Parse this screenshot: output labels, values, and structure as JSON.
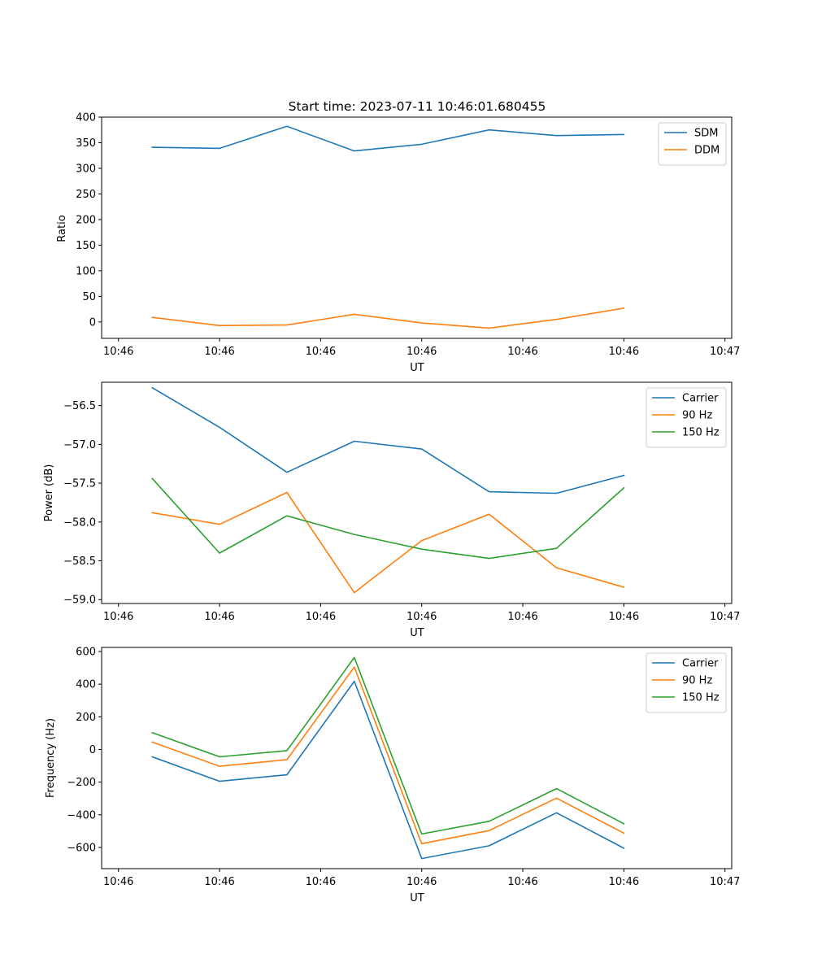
{
  "chart_data": [
    {
      "type": "line",
      "title": "Start time: 2023-07-11 10:46:01.680455",
      "xlabel": "UT",
      "ylabel": "Ratio",
      "ylim": [
        -32,
        400
      ],
      "yticks": [
        0,
        50,
        100,
        150,
        200,
        250,
        300,
        350,
        400
      ],
      "xlim": [
        -0.75,
        8.6
      ],
      "xticks": [
        -0.5,
        1.0,
        2.5,
        4.0,
        5.5,
        7.0,
        8.5
      ],
      "xtick_labels": [
        "10:46",
        "10:46",
        "10:46",
        "10:46",
        "10:46",
        "10:46",
        "10:47"
      ],
      "x": [
        0,
        1,
        2,
        3,
        4,
        5,
        6,
        7
      ],
      "legend": "upper right",
      "series": [
        {
          "name": "SDM",
          "color": "#1f77b4",
          "values": [
            341,
            339,
            382,
            334,
            347,
            375,
            364,
            366
          ]
        },
        {
          "name": "DDM",
          "color": "#ff7f0e",
          "values": [
            9,
            -7,
            -6,
            15,
            -2,
            -12,
            5,
            27
          ]
        }
      ]
    },
    {
      "type": "line",
      "title": "",
      "xlabel": "UT",
      "ylabel": "Power (dB)",
      "ylim": [
        -59.05,
        -56.2
      ],
      "yticks": [
        -59.0,
        -58.5,
        -58.0,
        -57.5,
        -57.0,
        -56.5
      ],
      "ytick_labels": [
        "−59.0",
        "−58.5",
        "−58.0",
        "−57.5",
        "−57.0",
        "−56.5"
      ],
      "xlim": [
        -0.75,
        8.6
      ],
      "xticks": [
        -0.5,
        1.0,
        2.5,
        4.0,
        5.5,
        7.0,
        8.5
      ],
      "xtick_labels": [
        "10:46",
        "10:46",
        "10:46",
        "10:46",
        "10:46",
        "10:46",
        "10:47"
      ],
      "x": [
        0,
        1,
        2,
        3,
        4,
        5,
        6,
        7
      ],
      "legend": "upper right",
      "series": [
        {
          "name": "Carrier",
          "color": "#1f77b4",
          "values": [
            -56.27,
            -56.78,
            -57.36,
            -56.96,
            -57.06,
            -57.61,
            -57.63,
            -57.4
          ]
        },
        {
          "name": "90 Hz",
          "color": "#ff7f0e",
          "values": [
            -57.88,
            -58.03,
            -57.62,
            -58.91,
            -58.24,
            -57.9,
            -58.59,
            -58.84
          ]
        },
        {
          "name": "150 Hz",
          "color": "#2ca02c",
          "values": [
            -57.44,
            -58.4,
            -57.92,
            -58.16,
            -58.35,
            -58.47,
            -58.34,
            -57.56
          ]
        }
      ]
    },
    {
      "type": "line",
      "title": "",
      "xlabel": "UT",
      "ylabel": "Frequency (Hz)",
      "ylim": [
        -730,
        625
      ],
      "yticks": [
        -600,
        -400,
        -200,
        0,
        200,
        400,
        600
      ],
      "ytick_labels": [
        "−600",
        "−400",
        "−200",
        "0",
        "200",
        "400",
        "600"
      ],
      "xlim": [
        -0.75,
        8.6
      ],
      "xticks": [
        -0.5,
        1.0,
        2.5,
        4.0,
        5.5,
        7.0,
        8.5
      ],
      "xtick_labels": [
        "10:46",
        "10:46",
        "10:46",
        "10:46",
        "10:46",
        "10:46",
        "10:47"
      ],
      "x": [
        0,
        1,
        2,
        3,
        4,
        5,
        6,
        7
      ],
      "legend": "upper right",
      "series": [
        {
          "name": "Carrier",
          "color": "#1f77b4",
          "values": [
            -45,
            -195,
            -155,
            418,
            -668,
            -590,
            -388,
            -605
          ]
        },
        {
          "name": "90 Hz",
          "color": "#ff7f0e",
          "values": [
            45,
            -103,
            -63,
            505,
            -577,
            -497,
            -298,
            -513
          ]
        },
        {
          "name": "150 Hz",
          "color": "#2ca02c",
          "values": [
            103,
            -45,
            -7,
            563,
            -518,
            -440,
            -240,
            -455
          ]
        }
      ]
    }
  ]
}
